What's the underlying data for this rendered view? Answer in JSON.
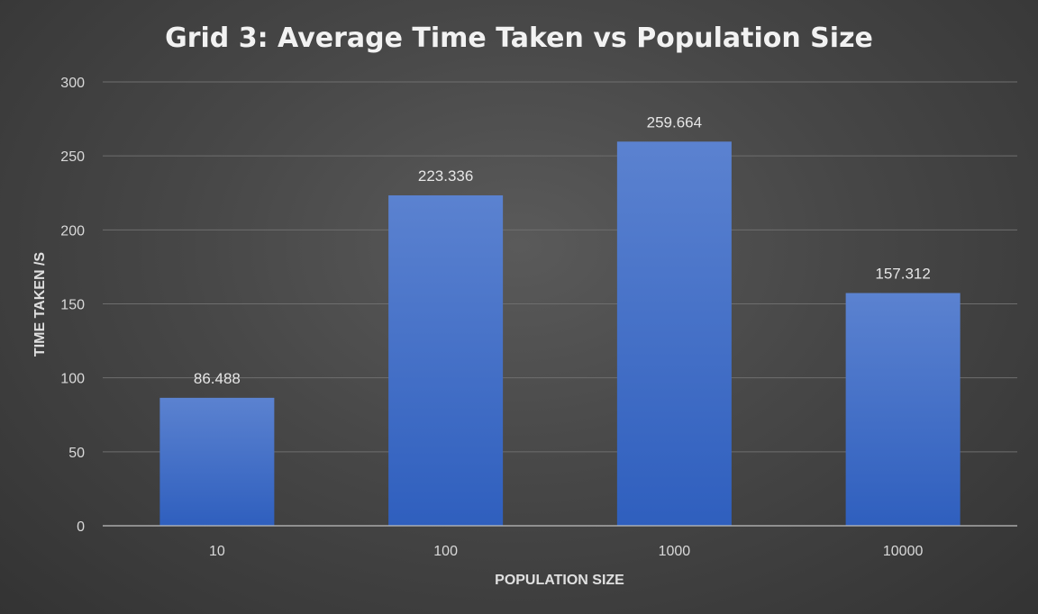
{
  "chart_data": {
    "type": "bar",
    "title": "Grid 3: Average Time Taken vs Population Size",
    "xlabel": "POPULATION SIZE",
    "ylabel": "TIME TAKEN /S",
    "categories": [
      "10",
      "100",
      "1000",
      "10000"
    ],
    "values": [
      86.488,
      223.336,
      259.664,
      157.312
    ],
    "data_labels": [
      "86.488",
      "223.336",
      "259.664",
      "157.312"
    ],
    "ylim": [
      0,
      300
    ],
    "yticks": [
      0,
      50,
      100,
      150,
      200,
      250,
      300
    ],
    "grid": true,
    "legend": "none",
    "bar_color_top": "#5b82d0",
    "bar_color_bottom": "#2f5fbe"
  }
}
